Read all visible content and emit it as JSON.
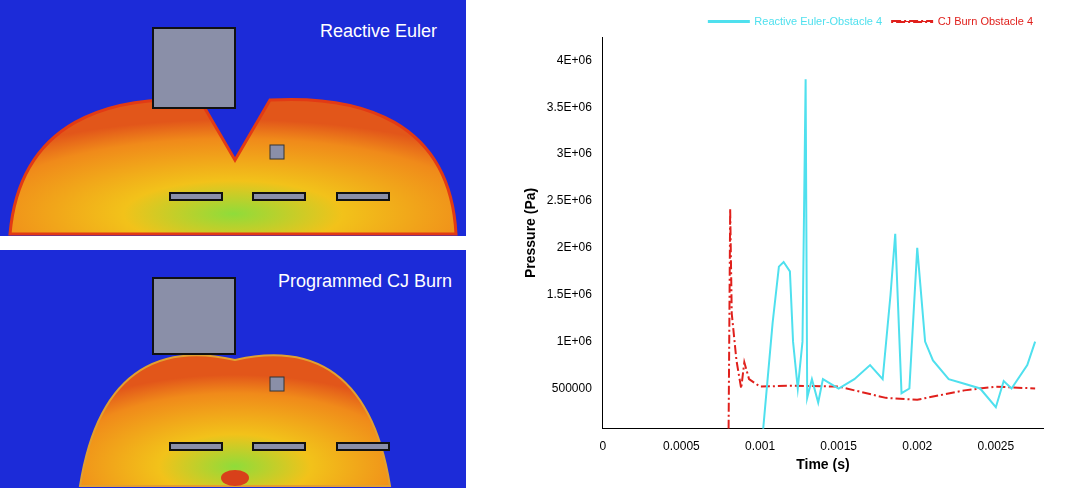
{
  "images": [
    {
      "label": "Reactive Euler"
    },
    {
      "label": "Programmed CJ Burn"
    }
  ],
  "chart_data": {
    "type": "line",
    "x_label": "Time (s)",
    "y_label": "Pressure (Pa)",
    "xlim": [
      0,
      0.0028
    ],
    "xticks": [
      0,
      0.0005,
      0.001,
      0.0015,
      0.002,
      0.0025
    ],
    "ylim": [
      70000,
      4250000
    ],
    "yticks": [
      500000,
      {
        "value": 1000000,
        "label": "1E+06"
      },
      {
        "value": 1500000,
        "label": "1.5E+06"
      },
      {
        "value": 2000000,
        "label": "2E+06"
      },
      {
        "value": 2500000,
        "label": "2.5E+06"
      },
      {
        "value": 3000000,
        "label": "3E+06"
      },
      {
        "value": 3500000,
        "label": "3.5E+06"
      },
      {
        "value": 4000000,
        "label": "4E+06"
      }
    ],
    "grid": false,
    "legend": "top-right",
    "series": [
      {
        "name": "Reactive Euler-Obstacle 4",
        "color": "#4fe0ee",
        "line_style": "solid",
        "x": [
          0.00102,
          0.00108,
          0.00112,
          0.00115,
          0.00119,
          0.00121,
          0.00124,
          0.00127,
          0.00129,
          0.0013,
          0.00133,
          0.00137,
          0.0014,
          0.0015,
          0.0016,
          0.0017,
          0.00178,
          0.00183,
          0.00186,
          0.0019,
          0.00195,
          0.002,
          0.00205,
          0.0021,
          0.0022,
          0.0023,
          0.0024,
          0.0025,
          0.00255,
          0.0026,
          0.0027,
          0.00275
        ],
        "values": [
          70000,
          1200000,
          1800000,
          1850000,
          1750000,
          1000000,
          500000,
          1000000,
          3800000,
          400000,
          600000,
          350000,
          600000,
          500000,
          600000,
          750000,
          600000,
          1500000,
          2150000,
          450000,
          500000,
          2000000,
          1000000,
          800000,
          600000,
          550000,
          500000,
          300000,
          580000,
          500000,
          750000,
          1000000
        ]
      },
      {
        "name": "CJ Burn Obstacle 4",
        "color": "#e0201c",
        "line_style": "dashdot",
        "x": [
          0.0008,
          0.00081,
          0.00082,
          0.00085,
          0.00088,
          0.0009,
          0.00093,
          0.001,
          0.0012,
          0.0015,
          0.0018,
          0.002,
          0.0023,
          0.0025,
          0.00275
        ],
        "values": [
          70000,
          2420000,
          1300000,
          800000,
          500000,
          780000,
          600000,
          520000,
          530000,
          520000,
          400000,
          380000,
          480000,
          520000,
          500000
        ]
      }
    ]
  }
}
